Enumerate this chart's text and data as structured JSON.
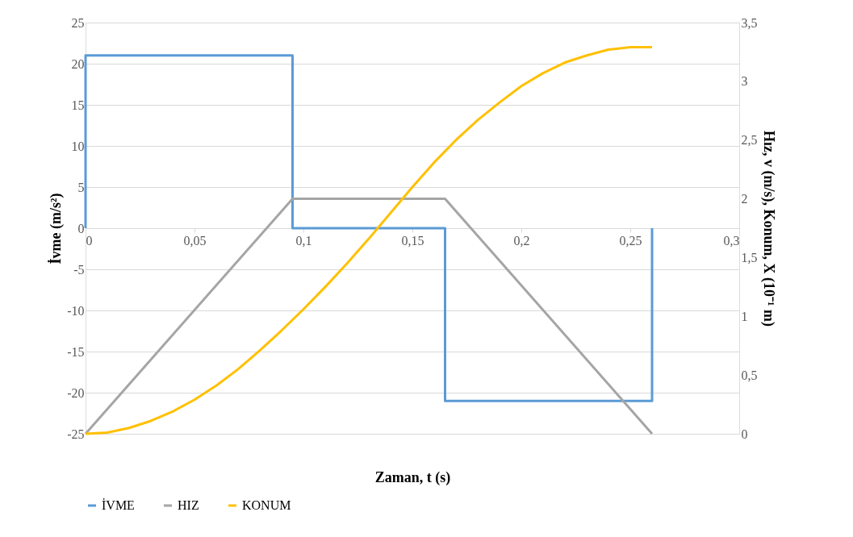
{
  "chart_data": {
    "type": "line",
    "xlabel": "Zaman, t (s)",
    "ylabel": "İvme (m/s²)",
    "y2label": "Hız, v (m/s), Konum, X (10⁻¹ m)",
    "xlim": [
      0,
      0.3
    ],
    "xticks": [
      0,
      {
        "value": 0.05,
        "label": "0,05"
      },
      {
        "value": 0.1,
        "label": "0,1"
      },
      {
        "value": 0.15,
        "label": "0,15"
      },
      {
        "value": 0.2,
        "label": "0,2"
      },
      {
        "value": 0.25,
        "label": "0,25"
      },
      {
        "value": 0.3,
        "label": "0,3"
      }
    ],
    "ylim": [
      -25,
      25
    ],
    "yticks": [
      -25,
      -20,
      -15,
      -10,
      -5,
      0,
      5,
      10,
      15,
      20,
      25
    ],
    "y2lim": [
      0,
      3.5
    ],
    "y2ticks": [
      0,
      {
        "value": 0.5,
        "label": "0,5"
      },
      1,
      {
        "value": 1.5,
        "label": "1,5"
      },
      2,
      {
        "value": 2.5,
        "label": "2,5"
      },
      3,
      {
        "value": 3.5,
        "label": "3,5"
      }
    ],
    "grid": "y",
    "legend": "bottom",
    "marker": "none",
    "line_style": "solid",
    "series": [
      {
        "name": "İVME",
        "color": "#5b9bd5",
        "x": [
          0,
          0,
          0.095,
          0.095,
          0.165,
          0.165,
          0.26,
          0.26
        ],
        "values": [
          0,
          21,
          21,
          0,
          0,
          -21,
          -21,
          0
        ]
      },
      {
        "name": "HIZ",
        "color": "#a5a5a5",
        "axis": "y2",
        "x": [
          0,
          0.095,
          0.165,
          0.26
        ],
        "values": [
          0,
          2,
          2,
          0
        ]
      },
      {
        "name": "KONUM",
        "color": "#ffc000",
        "axis": "y2",
        "x": [
          0,
          0.01,
          0.02,
          0.03,
          0.04,
          0.05,
          0.06,
          0.07,
          0.08,
          0.09,
          0.1,
          0.11,
          0.12,
          0.13,
          0.14,
          0.15,
          0.16,
          0.17,
          0.18,
          0.19,
          0.2,
          0.21,
          0.22,
          0.23,
          0.24,
          0.25,
          0.26
        ],
        "values": [
          0,
          0.01,
          0.05,
          0.11,
          0.19,
          0.29,
          0.41,
          0.55,
          0.71,
          0.88,
          1.06,
          1.25,
          1.45,
          1.66,
          1.88,
          2.1,
          2.31,
          2.5,
          2.67,
          2.82,
          2.96,
          3.07,
          3.16,
          3.22,
          3.27,
          3.29,
          3.29
        ]
      }
    ]
  }
}
